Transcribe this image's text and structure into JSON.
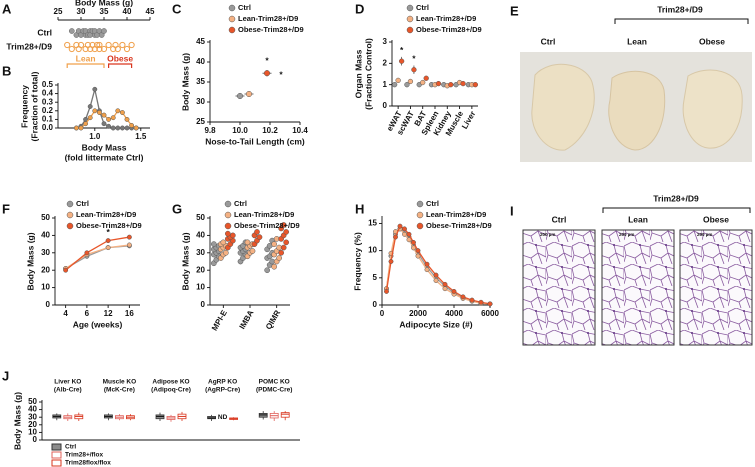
{
  "chart_data": [
    {
      "panel_label": "A",
      "type": "strip",
      "title": "Body Mass (g)",
      "xlim": [
        25,
        45
      ],
      "xticks": [
        25,
        30,
        35,
        40,
        45
      ],
      "categories": [
        "Ctrl",
        "Trim28+/D9"
      ],
      "series": [
        {
          "color": "#9a9a9a",
          "values": [
            28,
            29,
            29.5,
            30,
            30.5,
            31,
            31,
            31.5,
            32,
            32,
            32.5,
            33,
            33,
            33.5,
            34,
            34.5,
            35
          ]
        },
        {
          "color": "#f0a04b",
          "values": [
            27,
            28,
            29,
            29.5,
            30,
            31,
            31.5,
            32,
            32.5,
            33,
            33.5,
            34,
            34,
            35,
            36,
            37,
            37.5,
            38,
            39,
            40,
            41
          ]
        }
      ],
      "annotations": [
        {
          "text": "Lean",
          "range": [
            27,
            35
          ],
          "color": "#f0a04b"
        },
        {
          "text": "Obese",
          "range": [
            36,
            41
          ],
          "color": "#d9361e"
        }
      ]
    },
    {
      "panel_label": "B",
      "type": "line",
      "x_label": [
        "Body Mass",
        "(fold littermate Ctrl)"
      ],
      "y_label": [
        "Frequency",
        "(Fraction of total)"
      ],
      "xlim": [
        0.6,
        1.6
      ],
      "xticks": [
        {
          "value": 1,
          "label": "1.0"
        },
        1.5
      ],
      "ylim": [
        0,
        0.5
      ],
      "yticks": [
        {
          "value": 0,
          "label": "0.0"
        },
        0.1,
        0.2,
        0.3,
        0.4,
        0.5
      ],
      "x": [
        0.8,
        0.85,
        0.9,
        0.95,
        1.0,
        1.05,
        1.1,
        1.15,
        1.2,
        1.25,
        1.3,
        1.35,
        1.4,
        1.45
      ],
      "series": [
        {
          "color": "#777777",
          "values": [
            0,
            0.02,
            0.1,
            0.25,
            0.45,
            0.2,
            0.05,
            0.02,
            0,
            0,
            0,
            0,
            0,
            0
          ]
        },
        {
          "color": "#f0a04b",
          "values": [
            0,
            0,
            0.05,
            0.12,
            0.2,
            0.18,
            0.15,
            0.1,
            0.12,
            0.2,
            0.18,
            0.1,
            0.03,
            0
          ]
        }
      ]
    },
    {
      "panel_label": "C",
      "type": "scatter",
      "x_label": "Nose-to-Tail Length (cm)",
      "y_label": "Body Mass (g)",
      "xlim": [
        9.8,
        10.4
      ],
      "xticks": [
        9.8,
        {
          "value": 10,
          "label": "10.0"
        },
        10.2,
        10.4
      ],
      "ylim": [
        25,
        45
      ],
      "yticks": [
        25,
        30,
        35,
        40,
        45
      ],
      "series": [
        {
          "name": "Ctrl",
          "color": "#9a9a9a",
          "x": [
            10.0
          ],
          "values": [
            31.5
          ],
          "xerr": [
            0.03
          ],
          "yerr": [
            0.6
          ]
        },
        {
          "name": "Lean-Trim28+/D9",
          "color": "#f4b183",
          "x": [
            10.06
          ],
          "values": [
            32
          ],
          "xerr": [
            0.03
          ],
          "yerr": [
            0.6
          ]
        },
        {
          "name": "Obese-Trim28+/D9",
          "color": "#e8562a",
          "x": [
            10.18
          ],
          "values": [
            37.2
          ],
          "xerr": [
            0.03
          ],
          "yerr": [
            0.8
          ]
        }
      ],
      "annotations": [
        "*",
        "*"
      ]
    },
    {
      "panel_label": "D",
      "type": "dot",
      "y_label": [
        "Organ Mass",
        "(Fraction Control)"
      ],
      "categories": [
        "eWAT",
        "scWAT",
        "BAT",
        "Spleen",
        "Kidney",
        "Muscle",
        "Liver"
      ],
      "ylim": [
        0,
        3
      ],
      "yticks": [
        0,
        1,
        2,
        3
      ],
      "series": [
        {
          "name": "Ctrl",
          "color": "#9a9a9a",
          "values": [
            1,
            1,
            1,
            1,
            1,
            1,
            1
          ],
          "err": [
            0.05,
            0.05,
            0.05,
            0.05,
            0.05,
            0.05,
            0.05
          ]
        },
        {
          "name": "Lean-Trim28+/D9",
          "color": "#f4b183",
          "values": [
            1.2,
            1.15,
            1.1,
            1,
            0.95,
            1.1,
            1
          ],
          "err": [
            0.1,
            0.1,
            0.08,
            0.05,
            0.05,
            0.08,
            0.05
          ]
        },
        {
          "name": "Obese-Trim28+/D9",
          "color": "#e8562a",
          "values": [
            2.1,
            1.7,
            1.3,
            1.05,
            1.0,
            1.05,
            1.0
          ],
          "err": [
            0.2,
            0.2,
            0.1,
            0.05,
            0.05,
            0.05,
            0.05
          ]
        }
      ],
      "annotations": [
        {
          "text": "*",
          "x": "eWAT"
        },
        {
          "text": "*",
          "x": "scWAT"
        }
      ]
    },
    {
      "panel_label": "F",
      "type": "line",
      "x_label": "Age (weeks)",
      "y_label": "Body Mass (g)",
      "categories": [
        4,
        6,
        12,
        16
      ],
      "ylim": [
        0,
        50
      ],
      "yticks": [
        0,
        10,
        20,
        30,
        40,
        50
      ],
      "series": [
        {
          "name": "Ctrl",
          "color": "#9a9a9a",
          "values": [
            21,
            28,
            33,
            34
          ]
        },
        {
          "name": "Lean-Trim28+/D9",
          "color": "#f4b183",
          "values": [
            21,
            29,
            33,
            34.5
          ]
        },
        {
          "name": "Obese-Trim28+/D9",
          "color": "#e8562a",
          "values": [
            20,
            30,
            37,
            39
          ]
        }
      ],
      "annotations": [
        {
          "text": "*",
          "x": 12
        }
      ]
    },
    {
      "panel_label": "G",
      "type": "beeswarm",
      "y_label": "Body Mass (g)",
      "categories": [
        "MPI-E",
        "IMBA",
        "QIMR"
      ],
      "ylim": [
        0,
        50
      ],
      "yticks": [
        0,
        10,
        20,
        30,
        40,
        50
      ],
      "series": [
        {
          "name": "Ctrl",
          "color": "#9a9a9a",
          "values": [
            [
              24,
              26,
              28,
              29,
              30,
              31,
              32,
              33,
              34,
              35
            ],
            [
              25,
              27,
              29,
              30,
              31,
              32,
              33,
              34,
              36
            ],
            [
              20,
              23,
              25,
              27,
              28,
              30,
              32,
              34,
              37
            ]
          ]
        },
        {
          "name": "Lean-Trim28+/D9",
          "color": "#f4b183",
          "values": [
            [
              27,
              29,
              30,
              32,
              33,
              34,
              35,
              36
            ],
            [
              28,
              30,
              31,
              33,
              34,
              35,
              36
            ],
            [
              22,
              25,
              27,
              29,
              31,
              33,
              35,
              38
            ]
          ]
        },
        {
          "name": "Obese-Trim28+/D9",
          "color": "#e8562a",
          "values": [
            [
              33,
              35,
              37,
              38,
              39,
              40,
              41
            ],
            [
              35,
              37,
              39,
              40,
              42
            ],
            [
              30,
              33,
              36,
              38,
              40,
              42,
              44,
              46
            ]
          ]
        }
      ]
    },
    {
      "panel_label": "H",
      "type": "line",
      "x_label": "Adipocyte Size (#)",
      "y_label": "Frequency (%)",
      "xlim": [
        0,
        6000
      ],
      "xticks": [
        0,
        2000,
        4000,
        6000
      ],
      "ylim": [
        0,
        16
      ],
      "yticks": [
        0,
        5,
        10,
        15
      ],
      "x": [
        250,
        500,
        750,
        1000,
        1250,
        1500,
        1750,
        2000,
        2500,
        3000,
        3500,
        4000,
        4500,
        5000,
        5500,
        6000
      ],
      "series": [
        {
          "name": "Ctrl",
          "color": "#9a9a9a",
          "values": [
            3,
            9,
            13,
            14,
            13.5,
            12.5,
            11,
            9.5,
            7,
            5,
            3.5,
            2.2,
            1.3,
            0.8,
            0.4,
            0.2
          ]
        },
        {
          "name": "Lean-Trim28+/D9",
          "color": "#f4b183",
          "values": [
            3,
            9.5,
            13.5,
            14,
            13,
            12,
            10.5,
            9,
            6.5,
            4.5,
            3,
            2,
            1.2,
            0.7,
            0.3,
            0.2
          ]
        },
        {
          "name": "Obese-Trim28+/D9",
          "color": "#e8562a",
          "values": [
            2.5,
            8,
            12.5,
            14.5,
            14,
            13,
            11.5,
            10,
            7.5,
            5.5,
            3.8,
            2.5,
            1.5,
            0.9,
            0.5,
            0.2
          ]
        }
      ]
    },
    {
      "panel_label": "J",
      "type": "box",
      "y_label": "Body Mass (g)",
      "ylim": [
        0,
        50
      ],
      "yticks": [
        0,
        10,
        20,
        30,
        40,
        50
      ],
      "categories": [
        [
          "Liver KO",
          "(Alb-Cre)"
        ],
        [
          "Muscle KO",
          "(McK-Cre)"
        ],
        [
          "Adipose KO",
          "(Adipoq-Cre)"
        ],
        [
          "AgRP KO",
          "(AgRP-Cre)"
        ],
        [
          "POMC KO",
          "(PDMC-Cre)"
        ]
      ],
      "series": [
        {
          "name": "Ctrl",
          "color": "#8c8c8c",
          "stats": [
            [
              26,
              29,
              31,
              33,
              35
            ],
            [
              26,
              29,
              31,
              33,
              35
            ],
            [
              25,
              28,
              31,
              33,
              36
            ],
            [
              25,
              28,
              29,
              31,
              33
            ],
            [
              27,
              30,
              33,
              35,
              38
            ]
          ]
        },
        {
          "name": "Trim28+/flox",
          "color": "#e0605a",
          "stats": [
            [
              25,
              28,
              30,
              32,
              35
            ],
            [
              26,
              28,
              30,
              32,
              34
            ],
            [
              24,
              27,
              29,
              31,
              33
            ],
            null,
            [
              25,
              29,
              32,
              35,
              38
            ]
          ]
        },
        {
          "name": "Trim28flox/flox",
          "color": "#d9361e",
          "stats": [
            [
              25,
              28,
              31,
              33,
              36
            ],
            [
              26,
              28,
              30,
              32,
              34
            ],
            [
              25,
              28,
              31,
              34,
              37
            ],
            [
              26,
              27,
              28,
              29,
              30
            ],
            [
              26,
              30,
              34,
              36,
              38
            ]
          ]
        }
      ],
      "annotations": [
        "ND"
      ]
    }
  ],
  "images": [
    {
      "panel_label": "E",
      "group": "Trim28+/D9",
      "labels": [
        "Ctrl",
        "Lean",
        "Obese"
      ]
    },
    {
      "panel_label": "I",
      "group": "Trim28+/D9",
      "labels": [
        "Ctrl",
        "Lean",
        "Obese"
      ],
      "scale_labels": [
        "200 µm",
        "200 µm",
        "200 µm"
      ]
    }
  ]
}
